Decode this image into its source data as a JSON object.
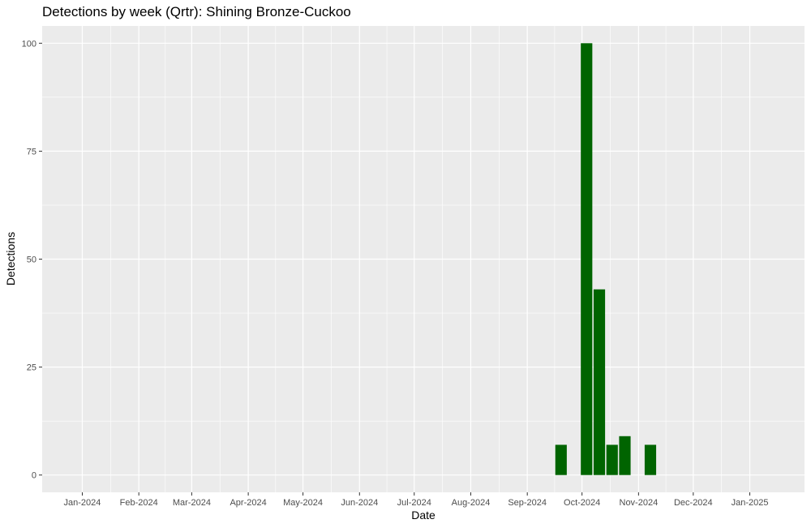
{
  "chart_data": {
    "type": "bar",
    "title": "Detections by week (Qrtr): Shining Bronze-Cuckoo",
    "xlabel": "Date",
    "ylabel": "Detections",
    "xlim": [
      "2023-12-10",
      "2025-01-31"
    ],
    "ylim": [
      -4,
      104
    ],
    "y_ticks": [
      0,
      25,
      50,
      75,
      100
    ],
    "x_ticks": [
      {
        "date": "2024-01-01",
        "label": "Jan-2024"
      },
      {
        "date": "2024-02-01",
        "label": "Feb-2024"
      },
      {
        "date": "2024-03-01",
        "label": "Mar-2024"
      },
      {
        "date": "2024-04-01",
        "label": "Apr-2024"
      },
      {
        "date": "2024-05-01",
        "label": "May-2024"
      },
      {
        "date": "2024-06-01",
        "label": "Jun-2024"
      },
      {
        "date": "2024-07-01",
        "label": "Jul-2024"
      },
      {
        "date": "2024-08-01",
        "label": "Aug-2024"
      },
      {
        "date": "2024-09-01",
        "label": "Sep-2024"
      },
      {
        "date": "2024-10-01",
        "label": "Oct-2024"
      },
      {
        "date": "2024-11-01",
        "label": "Nov-2024"
      },
      {
        "date": "2024-12-01",
        "label": "Dec-2024"
      },
      {
        "date": "2025-01-01",
        "label": "Jan-2025"
      }
    ],
    "bars": [
      {
        "week_start": "2024-09-16",
        "value": 7
      },
      {
        "week_start": "2024-09-30",
        "value": 100
      },
      {
        "week_start": "2024-10-07",
        "value": 43
      },
      {
        "week_start": "2024-10-14",
        "value": 7
      },
      {
        "week_start": "2024-10-21",
        "value": 9
      },
      {
        "week_start": "2024-11-04",
        "value": 7
      }
    ],
    "grid": true,
    "legend": "none",
    "colors": {
      "bar": "#006400",
      "panel": "#ebebeb",
      "grid": "#ffffff"
    }
  }
}
